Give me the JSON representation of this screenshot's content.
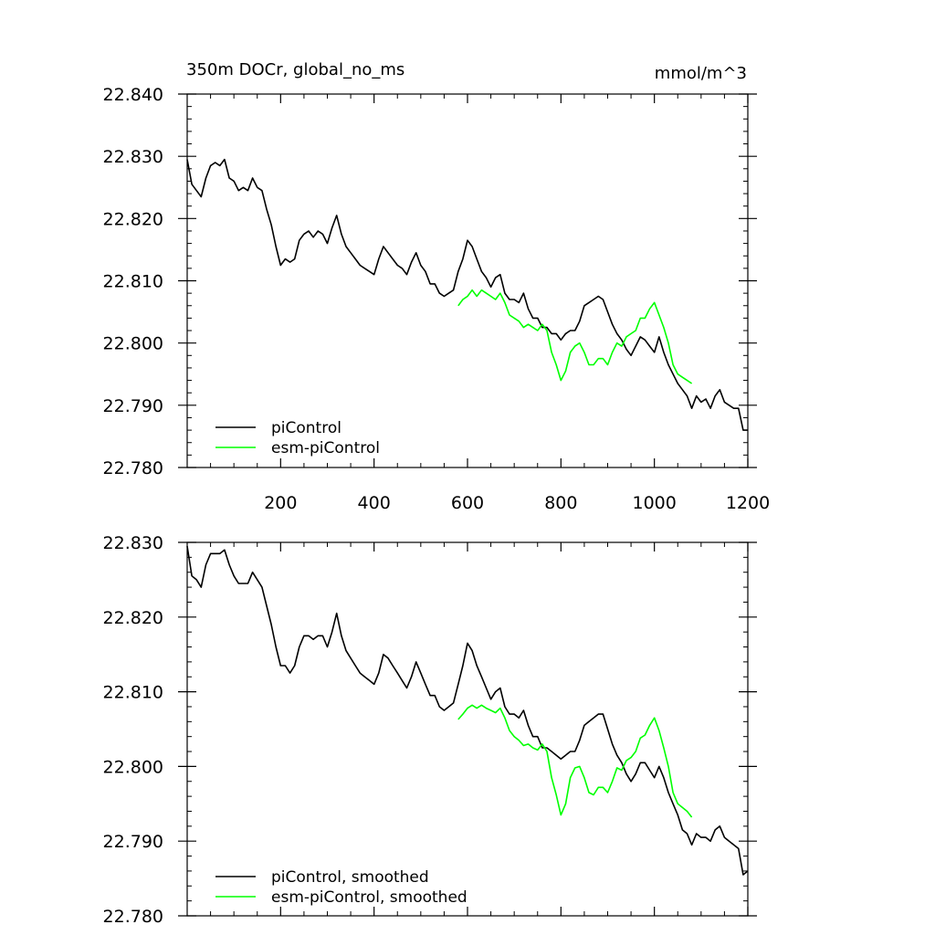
{
  "figure": {
    "title": "350m DOCr, global_no_ms",
    "units": "mmol/m^3"
  },
  "chart_data": [
    {
      "type": "line",
      "panel": "top",
      "title": "350m DOCr, global_no_ms",
      "units_label": "mmol/m^3",
      "xlabel": "",
      "ylabel": "",
      "xlim": [
        0,
        1200
      ],
      "ylim": [
        22.78,
        22.84
      ],
      "x_ticks": [
        200,
        400,
        600,
        800,
        1000,
        1200
      ],
      "x_tick_labels": [
        "200",
        "400",
        "600",
        "800",
        "1000",
        "1200"
      ],
      "y_ticks": [
        22.78,
        22.79,
        22.8,
        22.81,
        22.82,
        22.83,
        22.84
      ],
      "y_tick_labels": [
        "22.780",
        "22.790",
        "22.800",
        "22.810",
        "22.820",
        "22.830",
        "22.840"
      ],
      "grid": false,
      "legend": {
        "position": "bottom-left",
        "entries": [
          "piControl",
          "esm-piControl"
        ]
      },
      "series": [
        {
          "name": "piControl",
          "color": "#000000",
          "x": [
            0,
            10,
            20,
            30,
            40,
            50,
            60,
            70,
            80,
            90,
            100,
            110,
            120,
            130,
            140,
            150,
            160,
            170,
            180,
            190,
            200,
            210,
            220,
            230,
            240,
            250,
            260,
            270,
            280,
            290,
            300,
            310,
            320,
            330,
            340,
            350,
            360,
            370,
            380,
            390,
            400,
            410,
            420,
            430,
            440,
            450,
            460,
            470,
            480,
            490,
            500,
            510,
            520,
            530,
            540,
            550,
            560,
            570,
            580,
            590,
            600,
            610,
            620,
            630,
            640,
            650,
            660,
            670,
            680,
            690,
            700,
            710,
            720,
            730,
            740,
            750,
            760,
            770,
            780,
            790,
            800,
            810,
            820,
            830,
            840,
            850,
            860,
            870,
            880,
            890,
            900,
            910,
            920,
            930,
            940,
            950,
            960,
            970,
            980,
            990,
            1000,
            1010,
            1020,
            1030,
            1040,
            1050,
            1060,
            1070,
            1080,
            1090,
            1100,
            1110,
            1120,
            1130,
            1140,
            1150,
            1160,
            1170,
            1180,
            1190,
            1200
          ],
          "y": [
            22.8295,
            22.8255,
            22.8245,
            22.8235,
            22.8265,
            22.8285,
            22.829,
            22.8285,
            22.8295,
            22.8265,
            22.826,
            22.8245,
            22.825,
            22.8245,
            22.8265,
            22.825,
            22.8245,
            22.8215,
            22.819,
            22.8155,
            22.8125,
            22.8135,
            22.813,
            22.8135,
            22.8165,
            22.8175,
            22.818,
            22.817,
            22.818,
            22.8175,
            22.816,
            22.8185,
            22.8205,
            22.8175,
            22.8155,
            22.8145,
            22.8135,
            22.8125,
            22.812,
            22.8115,
            22.811,
            22.8135,
            22.8155,
            22.8145,
            22.8135,
            22.8125,
            22.812,
            22.811,
            22.813,
            22.8145,
            22.8125,
            22.8115,
            22.8095,
            22.8095,
            22.808,
            22.8075,
            22.808,
            22.8085,
            22.8115,
            22.8135,
            22.8165,
            22.8155,
            22.8135,
            22.8115,
            22.8105,
            22.809,
            22.8105,
            22.811,
            22.808,
            22.807,
            22.807,
            22.8065,
            22.808,
            22.8055,
            22.804,
            22.804,
            22.8025,
            22.8025,
            22.8015,
            22.8015,
            22.8005,
            22.8015,
            22.802,
            22.802,
            22.8035,
            22.806,
            22.8065,
            22.807,
            22.8075,
            22.807,
            22.805,
            22.803,
            22.8015,
            22.8005,
            22.799,
            22.798,
            22.7995,
            22.801,
            22.8005,
            22.7995,
            22.7985,
            22.801,
            22.7985,
            22.7965,
            22.795,
            22.7935,
            22.7925,
            22.7915,
            22.7895,
            22.7915,
            22.7905,
            22.791,
            22.7895,
            22.7915,
            22.7925,
            22.7905,
            22.79,
            22.7895,
            22.7895,
            22.786,
            22.786
          ]
        },
        {
          "name": "esm-piControl",
          "color": "#00ff00",
          "x": [
            580,
            590,
            600,
            610,
            620,
            630,
            640,
            650,
            660,
            670,
            680,
            690,
            700,
            710,
            720,
            730,
            740,
            750,
            760,
            770,
            780,
            790,
            800,
            810,
            820,
            830,
            840,
            850,
            860,
            870,
            880,
            890,
            900,
            910,
            920,
            930,
            940,
            950,
            960,
            970,
            980,
            990,
            1000,
            1010,
            1020,
            1030,
            1040,
            1050,
            1060,
            1070,
            1080
          ],
          "y": [
            22.806,
            22.807,
            22.8075,
            22.8085,
            22.8075,
            22.8085,
            22.808,
            22.8075,
            22.807,
            22.808,
            22.8065,
            22.8045,
            22.804,
            22.8035,
            22.8025,
            22.803,
            22.8025,
            22.802,
            22.803,
            22.802,
            22.7985,
            22.7965,
            22.794,
            22.7955,
            22.7985,
            22.7995,
            22.8,
            22.7985,
            22.7965,
            22.7965,
            22.7975,
            22.7975,
            22.7965,
            22.7985,
            22.8,
            22.7995,
            22.801,
            22.8015,
            22.802,
            22.804,
            22.804,
            22.8055,
            22.8065,
            22.8045,
            22.8025,
            22.8,
            22.7965,
            22.795,
            22.7945,
            22.794,
            22.7935
          ]
        }
      ]
    },
    {
      "type": "line",
      "panel": "bottom",
      "title": "",
      "xlabel": "",
      "ylabel": "",
      "xlim": [
        0,
        1200
      ],
      "ylim": [
        22.78,
        22.83
      ],
      "x_ticks": [
        200,
        400,
        600,
        800,
        1000,
        1200
      ],
      "y_ticks": [
        22.78,
        22.79,
        22.8,
        22.81,
        22.82,
        22.83
      ],
      "y_tick_labels": [
        "22.780",
        "22.790",
        "22.800",
        "22.810",
        "22.820",
        "22.830"
      ],
      "grid": false,
      "legend": {
        "position": "bottom-left",
        "entries": [
          "piControl, smoothed",
          "esm-piControl, smoothed"
        ]
      },
      "series": [
        {
          "name": "piControl, smoothed",
          "color": "#000000",
          "x": [
            0,
            10,
            20,
            30,
            40,
            50,
            60,
            70,
            80,
            90,
            100,
            110,
            120,
            130,
            140,
            150,
            160,
            170,
            180,
            190,
            200,
            210,
            220,
            230,
            240,
            250,
            260,
            270,
            280,
            290,
            300,
            310,
            320,
            330,
            340,
            350,
            360,
            370,
            380,
            390,
            400,
            410,
            420,
            430,
            440,
            450,
            460,
            470,
            480,
            490,
            500,
            510,
            520,
            530,
            540,
            550,
            560,
            570,
            580,
            590,
            600,
            610,
            620,
            630,
            640,
            650,
            660,
            670,
            680,
            690,
            700,
            710,
            720,
            730,
            740,
            750,
            760,
            770,
            780,
            790,
            800,
            810,
            820,
            830,
            840,
            850,
            860,
            870,
            880,
            890,
            900,
            910,
            920,
            930,
            940,
            950,
            960,
            970,
            980,
            990,
            1000,
            1010,
            1020,
            1030,
            1040,
            1050,
            1060,
            1070,
            1080,
            1090,
            1100,
            1110,
            1120,
            1130,
            1140,
            1150,
            1160,
            1170,
            1180,
            1190,
            1200
          ],
          "y": [
            22.8295,
            22.8255,
            22.825,
            22.824,
            22.827,
            22.8285,
            22.8285,
            22.8285,
            22.829,
            22.827,
            22.8255,
            22.8245,
            22.8245,
            22.8245,
            22.826,
            22.825,
            22.824,
            22.8215,
            22.819,
            22.816,
            22.8135,
            22.8135,
            22.8125,
            22.8135,
            22.816,
            22.8175,
            22.8175,
            22.817,
            22.8175,
            22.8175,
            22.816,
            22.818,
            22.8205,
            22.8175,
            22.8155,
            22.8145,
            22.8135,
            22.8125,
            22.812,
            22.8115,
            22.811,
            22.8125,
            22.815,
            22.8145,
            22.8135,
            22.8125,
            22.8115,
            22.8105,
            22.812,
            22.814,
            22.8125,
            22.811,
            22.8095,
            22.8095,
            22.808,
            22.8075,
            22.808,
            22.8085,
            22.811,
            22.8135,
            22.8165,
            22.8155,
            22.8135,
            22.812,
            22.8105,
            22.809,
            22.81,
            22.8105,
            22.808,
            22.807,
            22.807,
            22.8065,
            22.8075,
            22.8055,
            22.804,
            22.804,
            22.8025,
            22.8025,
            22.802,
            22.8015,
            22.801,
            22.8015,
            22.802,
            22.802,
            22.8035,
            22.8055,
            22.806,
            22.8065,
            22.807,
            22.807,
            22.805,
            22.803,
            22.8015,
            22.8005,
            22.799,
            22.798,
            22.799,
            22.8005,
            22.8005,
            22.7995,
            22.7985,
            22.8,
            22.7985,
            22.7965,
            22.795,
            22.7935,
            22.7915,
            22.791,
            22.7895,
            22.791,
            22.7905,
            22.7905,
            22.79,
            22.7915,
            22.792,
            22.7905,
            22.79,
            22.7895,
            22.789,
            22.7855,
            22.786
          ]
        },
        {
          "name": "esm-piControl, smoothed",
          "color": "#00ff00",
          "x": [
            580,
            590,
            600,
            610,
            620,
            630,
            640,
            650,
            660,
            670,
            680,
            690,
            700,
            710,
            720,
            730,
            740,
            750,
            760,
            770,
            780,
            790,
            800,
            810,
            820,
            830,
            840,
            850,
            860,
            870,
            880,
            890,
            900,
            910,
            920,
            930,
            940,
            950,
            960,
            970,
            980,
            990,
            1000,
            1010,
            1020,
            1030,
            1040,
            1050,
            1060,
            1070,
            1080
          ],
          "y": [
            22.8063,
            22.807,
            22.8078,
            22.8082,
            22.8078,
            22.8082,
            22.8078,
            22.8075,
            22.8072,
            22.8078,
            22.8065,
            22.8048,
            22.804,
            22.8035,
            22.8028,
            22.803,
            22.8025,
            22.8022,
            22.803,
            22.802,
            22.7985,
            22.7962,
            22.7935,
            22.795,
            22.7985,
            22.7998,
            22.8,
            22.7985,
            22.7965,
            22.7962,
            22.7972,
            22.7972,
            22.7965,
            22.798,
            22.7998,
            22.7995,
            22.8008,
            22.8012,
            22.802,
            22.8038,
            22.8042,
            22.8055,
            22.8065,
            22.8048,
            22.8025,
            22.8,
            22.7965,
            22.795,
            22.7945,
            22.794,
            22.7932
          ]
        }
      ]
    }
  ]
}
